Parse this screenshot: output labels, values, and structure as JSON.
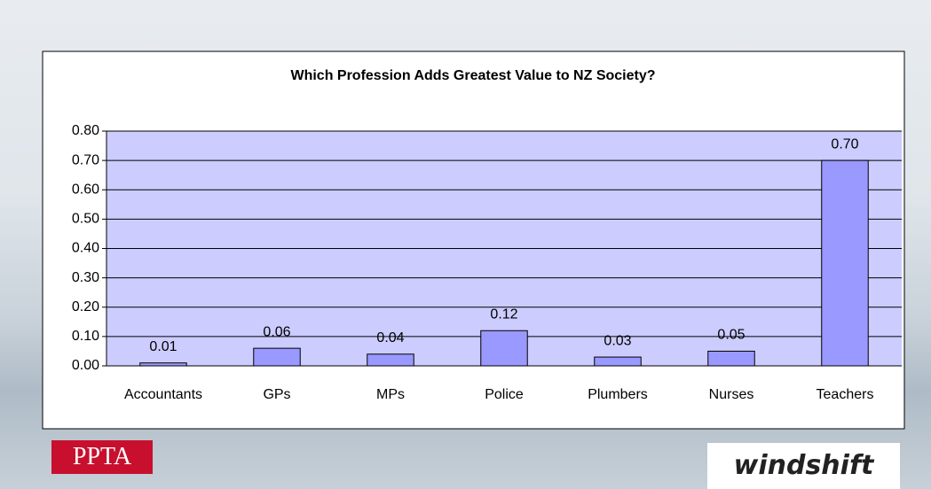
{
  "chart_data": {
    "type": "bar",
    "title": "Which Profession Adds Greatest Value to NZ Society?",
    "categories": [
      "Accountants",
      "GPs",
      "MPs",
      "Police",
      "Plumbers",
      "Nurses",
      "Teachers"
    ],
    "values": [
      0.01,
      0.06,
      0.04,
      0.12,
      0.03,
      0.05,
      0.7
    ],
    "value_labels": [
      "0.01",
      "0.06",
      "0.04",
      "0.12",
      "0.03",
      "0.05",
      "0.70"
    ],
    "color": "#9999ff",
    "ylim": [
      0,
      0.8
    ],
    "yticks": [
      {
        "value": 0,
        "label": "0.00"
      },
      {
        "value": 0.1,
        "label": "0.10"
      },
      {
        "value": 0.2,
        "label": "0.20"
      },
      {
        "value": 0.3,
        "label": "0.30"
      },
      {
        "value": 0.4,
        "label": "0.40"
      },
      {
        "value": 0.5,
        "label": "0.50"
      },
      {
        "value": 0.6,
        "label": "0.60"
      },
      {
        "value": 0.7,
        "label": "0.70"
      },
      {
        "value": 0.8,
        "label": "0.80"
      }
    ],
    "grid": true
  },
  "footer": {
    "left_logo": "PPTA",
    "right_logo": "windshift"
  }
}
